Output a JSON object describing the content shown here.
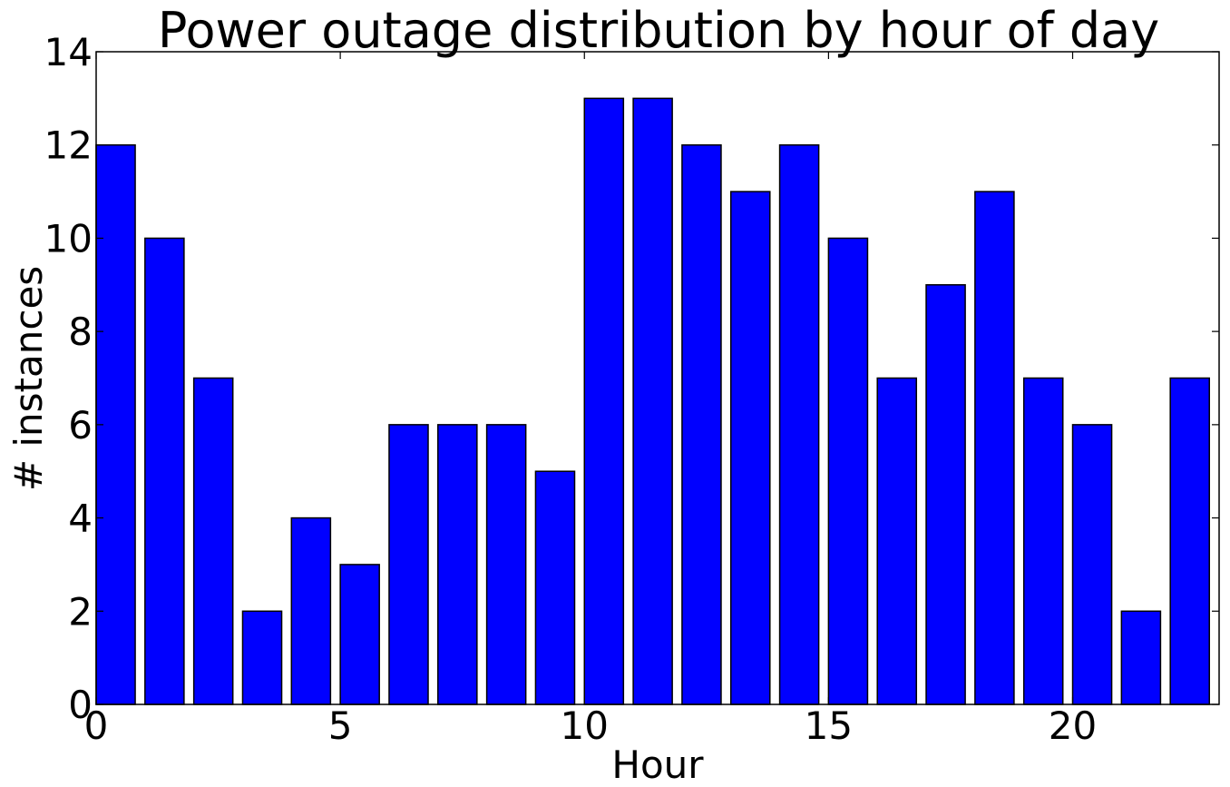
{
  "chart_data": {
    "type": "bar",
    "title": "Power outage distribution by hour of day",
    "xlabel": "Hour",
    "ylabel": "# instances",
    "x": [
      0,
      1,
      2,
      3,
      4,
      5,
      6,
      7,
      8,
      9,
      10,
      11,
      12,
      13,
      14,
      15,
      16,
      17,
      18,
      19,
      20,
      21,
      22
    ],
    "values": [
      12,
      10,
      7,
      2,
      4,
      3,
      6,
      6,
      6,
      5,
      13,
      13,
      12,
      11,
      12,
      10,
      7,
      9,
      11,
      7,
      6,
      2,
      7
    ],
    "bar_width": 0.8,
    "xlim": [
      0,
      23
    ],
    "ylim": [
      0,
      14
    ],
    "xticks": [
      0,
      5,
      10,
      15,
      20
    ],
    "yticks": [
      0,
      2,
      4,
      6,
      8,
      10,
      12,
      14
    ],
    "bar_color": "#0000ff",
    "edge_color": "#000000",
    "grid": false,
    "legend": "none"
  }
}
